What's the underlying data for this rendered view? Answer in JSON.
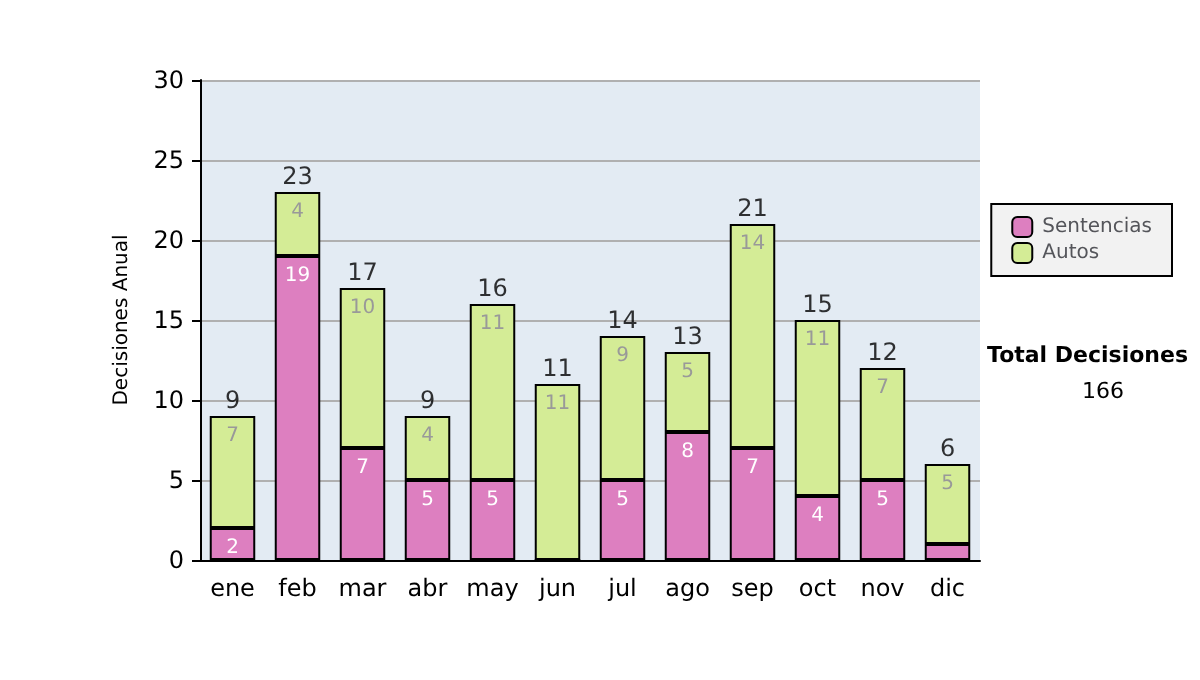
{
  "chart_data": {
    "type": "bar",
    "stacked": true,
    "ylabel": "Decisiones Anual",
    "categories": [
      "ene",
      "feb",
      "mar",
      "abr",
      "may",
      "jun",
      "jul",
      "ago",
      "sep",
      "oct",
      "nov",
      "dic"
    ],
    "series": [
      {
        "name": "Sentencias",
        "color": "#dd7fc0",
        "values": [
          2,
          19,
          7,
          5,
          5,
          0,
          5,
          8,
          7,
          4,
          5,
          1
        ],
        "value_labels": [
          "2",
          "19",
          "7",
          "5",
          "5",
          null,
          "5",
          "8",
          "7",
          "4",
          "5",
          null
        ]
      },
      {
        "name": "Autos",
        "color": "#d4ec96",
        "values": [
          7,
          4,
          10,
          4,
          11,
          11,
          9,
          5,
          14,
          11,
          7,
          5
        ],
        "value_labels": [
          "7",
          "4",
          "10",
          "4",
          "11",
          "11",
          "9",
          "5",
          "14",
          "11",
          "7",
          "5"
        ]
      }
    ],
    "totals": [
      "9",
      "23",
      "17",
      "9",
      "16",
      "11",
      "14",
      "13",
      "21",
      "15",
      "12",
      "6"
    ],
    "ylim": [
      0,
      30
    ],
    "yticks": [
      0,
      5,
      10,
      15,
      20,
      25,
      30
    ],
    "grid": "y",
    "legend": "right",
    "annotations": [
      "Total Decisiones",
      "166"
    ]
  }
}
